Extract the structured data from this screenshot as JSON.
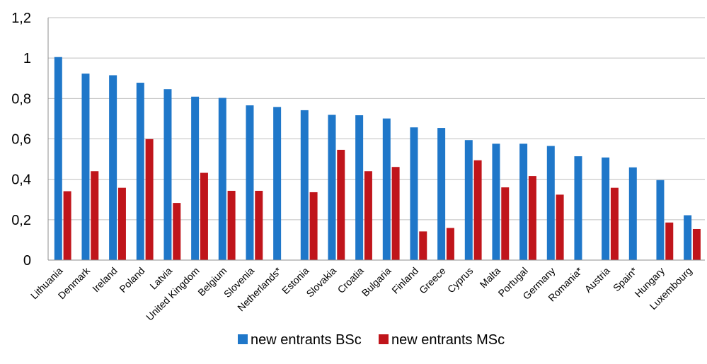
{
  "chart_data": {
    "type": "bar",
    "categories": [
      "Lithuania",
      "Denmark",
      "Ireland",
      "Poland",
      "Latvia",
      "United Kingdom",
      "Belgium",
      "Slovenia",
      "Netherlands*",
      "Estonia",
      "Slovakia",
      "Croatia",
      "Bulgaria",
      "Finland",
      "Greece",
      "Cyprus",
      "Malta",
      "Portugal",
      "Germany",
      "Romania*",
      "Austria",
      "Spain*",
      "Hungary",
      "Luxembourg"
    ],
    "series": [
      {
        "name": "new entrants BSc",
        "color": "#1f77c9",
        "values": [
          1.005,
          0.923,
          0.915,
          0.878,
          0.846,
          0.809,
          0.803,
          0.766,
          0.758,
          0.742,
          0.719,
          0.717,
          0.701,
          0.657,
          0.654,
          0.594,
          0.576,
          0.576,
          0.565,
          0.514,
          0.508,
          0.459,
          0.396,
          0.222
        ]
      },
      {
        "name": "new entrants MSc",
        "color": "#c0151b",
        "values": [
          0.341,
          0.44,
          0.358,
          0.599,
          0.283,
          0.432,
          0.343,
          0.343,
          null,
          0.336,
          0.546,
          0.44,
          0.461,
          0.142,
          0.159,
          0.494,
          0.36,
          0.416,
          0.324,
          null,
          0.358,
          null,
          0.186,
          0.154
        ]
      }
    ],
    "yticks": [
      "0",
      "0,2",
      "0,4",
      "0,6",
      "0,8",
      "1",
      "1,2"
    ],
    "ylim": [
      0,
      1.2
    ],
    "grid": true,
    "legend_position": "bottom",
    "title": "",
    "xlabel": "",
    "ylabel": ""
  }
}
